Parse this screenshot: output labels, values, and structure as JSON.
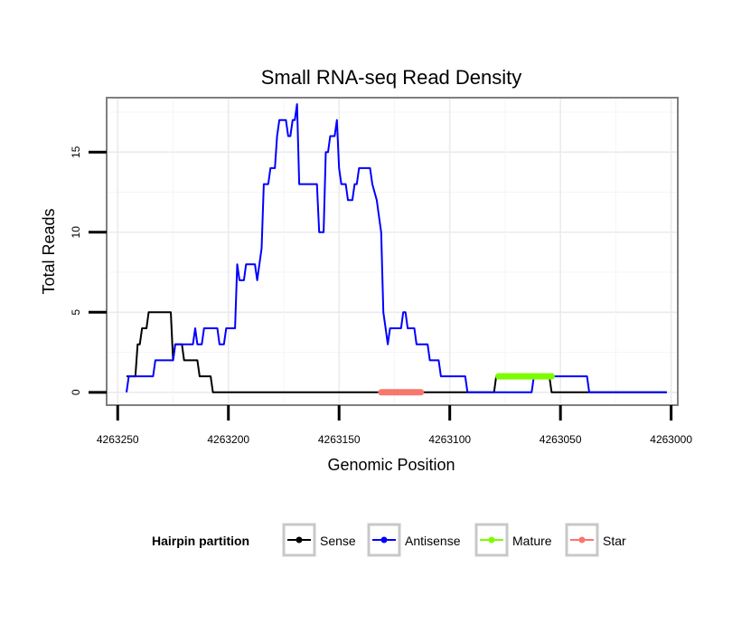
{
  "chart_data": {
    "type": "line",
    "title": "Small RNA-seq Read Density",
    "xlabel": "Genomic Position",
    "ylabel": "Total Reads",
    "xlim": [
      4263255,
      4262997
    ],
    "ylim": [
      -0.8,
      18.4
    ],
    "x_ticks": [
      4263250,
      4263200,
      4263150,
      4263100,
      4263050,
      4263000
    ],
    "x_tick_labels": [
      "4263250",
      "4263200",
      "4263150",
      "4263100",
      "4263050",
      "4263000"
    ],
    "y_ticks": [
      0,
      5,
      10,
      15
    ],
    "y_tick_labels": [
      "0",
      "5",
      "10",
      "15"
    ],
    "grid": true,
    "legend": {
      "title": "Hairpin partition",
      "position": "bottom",
      "items": [
        {
          "label": "Sense",
          "color": "#000000"
        },
        {
          "label": "Antisense",
          "color": "#0000ff"
        },
        {
          "label": "Mature",
          "color": "#7cfc00"
        },
        {
          "label": "Star",
          "color": "#f8766d"
        }
      ]
    },
    "series": [
      {
        "name": "Sense",
        "color": "#000000",
        "points": [
          [
            4263246,
            1
          ],
          [
            4263242,
            1
          ],
          [
            4263241,
            3
          ],
          [
            4263240,
            3
          ],
          [
            4263239,
            4
          ],
          [
            4263237,
            4
          ],
          [
            4263236,
            5
          ],
          [
            4263226,
            5
          ],
          [
            4263225,
            2
          ],
          [
            4263224,
            3
          ],
          [
            4263221,
            3
          ],
          [
            4263220,
            2
          ],
          [
            4263214,
            2
          ],
          [
            4263213,
            1
          ],
          [
            4263208,
            1
          ],
          [
            4263207,
            0
          ],
          [
            4263080,
            0
          ],
          [
            4263079,
            1
          ],
          [
            4263055,
            1
          ],
          [
            4263054,
            0
          ],
          [
            4263002,
            0
          ]
        ]
      },
      {
        "name": "Antisense",
        "color": "#0000ff",
        "points": [
          [
            4263246,
            0
          ],
          [
            4263245,
            1
          ],
          [
            4263234,
            1
          ],
          [
            4263233,
            2
          ],
          [
            4263225,
            2
          ],
          [
            4263224,
            3
          ],
          [
            4263216,
            3
          ],
          [
            4263215,
            4
          ],
          [
            4263214,
            3
          ],
          [
            4263212,
            3
          ],
          [
            4263211,
            4
          ],
          [
            4263205,
            4
          ],
          [
            4263204,
            3
          ],
          [
            4263202,
            3
          ],
          [
            4263201,
            4
          ],
          [
            4263197,
            4
          ],
          [
            4263196,
            8
          ],
          [
            4263195,
            7
          ],
          [
            4263193,
            7
          ],
          [
            4263192,
            8
          ],
          [
            4263188,
            8
          ],
          [
            4263187,
            7
          ],
          [
            4263185,
            9
          ],
          [
            4263184,
            13
          ],
          [
            4263182,
            13
          ],
          [
            4263181,
            14
          ],
          [
            4263179,
            14
          ],
          [
            4263178,
            16
          ],
          [
            4263177,
            17
          ],
          [
            4263174,
            17
          ],
          [
            4263173,
            16
          ],
          [
            4263172,
            16
          ],
          [
            4263171,
            17
          ],
          [
            4263170,
            17
          ],
          [
            4263169,
            18
          ],
          [
            4263168,
            13
          ],
          [
            4263160,
            13
          ],
          [
            4263159,
            10
          ],
          [
            4263157,
            10
          ],
          [
            4263156,
            15
          ],
          [
            4263155,
            15
          ],
          [
            4263154,
            16
          ],
          [
            4263152,
            16
          ],
          [
            4263151,
            17
          ],
          [
            4263150,
            14
          ],
          [
            4263149,
            13
          ],
          [
            4263147,
            13
          ],
          [
            4263146,
            12
          ],
          [
            4263144,
            12
          ],
          [
            4263143,
            13
          ],
          [
            4263142,
            13
          ],
          [
            4263141,
            14
          ],
          [
            4263136,
            14
          ],
          [
            4263135,
            13
          ],
          [
            4263133,
            12
          ],
          [
            4263132,
            11
          ],
          [
            4263131,
            10
          ],
          [
            4263130,
            5
          ],
          [
            4263129,
            4
          ],
          [
            4263128,
            3
          ],
          [
            4263127,
            4
          ],
          [
            4263122,
            4
          ],
          [
            4263121,
            5
          ],
          [
            4263120,
            5
          ],
          [
            4263119,
            4
          ],
          [
            4263116,
            4
          ],
          [
            4263115,
            3
          ],
          [
            4263110,
            3
          ],
          [
            4263109,
            2
          ],
          [
            4263105,
            2
          ],
          [
            4263104,
            1
          ],
          [
            4263093,
            1
          ],
          [
            4263092,
            0
          ],
          [
            4263063,
            0
          ],
          [
            4263062,
            1
          ],
          [
            4263038,
            1
          ],
          [
            4263037,
            0
          ],
          [
            4263002,
            0
          ]
        ]
      },
      {
        "name": "Mature",
        "color": "#7cfc00",
        "points": [
          [
            4263078,
            1
          ],
          [
            4263054,
            1
          ]
        ]
      },
      {
        "name": "Star",
        "color": "#f8766d",
        "points": [
          [
            4263131,
            0
          ],
          [
            4263113,
            0
          ]
        ]
      }
    ]
  }
}
